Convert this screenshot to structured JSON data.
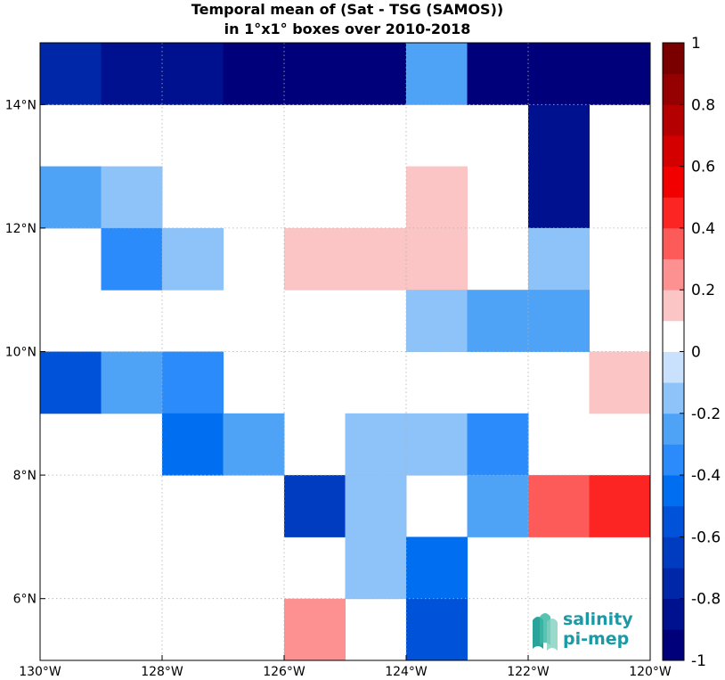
{
  "figure": {
    "title_line1": "Temporal mean of (Sat - TSG (SAMOS))",
    "title_line2": "in 1°x1° boxes over 2010-2018"
  },
  "map": {
    "lon_range": [
      -130,
      -120
    ],
    "lat_range": [
      5,
      15
    ],
    "x_ticks": [
      {
        "value": -130,
        "label": "130°W"
      },
      {
        "value": -128,
        "label": "128°W"
      },
      {
        "value": -126,
        "label": "126°W"
      },
      {
        "value": -124,
        "label": "124°W"
      },
      {
        "value": -122,
        "label": "122°W"
      },
      {
        "value": -120,
        "label": "120°W"
      }
    ],
    "y_ticks": [
      {
        "value": 6,
        "label": "6°N"
      },
      {
        "value": 8,
        "label": "8°N"
      },
      {
        "value": 10,
        "label": "10°N"
      },
      {
        "value": 12,
        "label": "12°N"
      },
      {
        "value": 14,
        "label": "14°N"
      }
    ],
    "grid": true,
    "cells": [
      {
        "lon": -130,
        "lat": 14,
        "value": -0.75
      },
      {
        "lon": -129,
        "lat": 14,
        "value": -0.8
      },
      {
        "lon": -128,
        "lat": 14,
        "value": -0.88
      },
      {
        "lon": -127,
        "lat": 14,
        "value": -0.98
      },
      {
        "lon": -126,
        "lat": 14,
        "value": -0.98
      },
      {
        "lon": -125,
        "lat": 14,
        "value": -0.98
      },
      {
        "lon": -124,
        "lat": 14,
        "value": -0.25
      },
      {
        "lon": -123,
        "lat": 14,
        "value": -0.98
      },
      {
        "lon": -122,
        "lat": 14,
        "value": -0.98
      },
      {
        "lon": -121,
        "lat": 14,
        "value": -0.98
      },
      {
        "lon": -122,
        "lat": 13,
        "value": -0.88
      },
      {
        "lon": -130,
        "lat": 12,
        "value": -0.3
      },
      {
        "lon": -129,
        "lat": 12,
        "value": -0.15
      },
      {
        "lon": -124,
        "lat": 12,
        "value": 0.15
      },
      {
        "lon": -122,
        "lat": 12,
        "value": -0.8
      },
      {
        "lon": -129,
        "lat": 11,
        "value": -0.35
      },
      {
        "lon": -128,
        "lat": 11,
        "value": -0.15
      },
      {
        "lon": -126,
        "lat": 11,
        "value": 0.15
      },
      {
        "lon": -125,
        "lat": 11,
        "value": 0.15
      },
      {
        "lon": -124,
        "lat": 11,
        "value": 0.15
      },
      {
        "lon": -122,
        "lat": 11,
        "value": -0.15
      },
      {
        "lon": -124,
        "lat": 10,
        "value": -0.15
      },
      {
        "lon": -123,
        "lat": 10,
        "value": -0.25
      },
      {
        "lon": -122,
        "lat": 10,
        "value": -0.25
      },
      {
        "lon": -130,
        "lat": 9,
        "value": -0.55
      },
      {
        "lon": -129,
        "lat": 9,
        "value": -0.25
      },
      {
        "lon": -128,
        "lat": 9,
        "value": -0.35
      },
      {
        "lon": -121,
        "lat": 9,
        "value": 0.15
      },
      {
        "lon": -128,
        "lat": 8,
        "value": -0.45
      },
      {
        "lon": -127,
        "lat": 8,
        "value": -0.25
      },
      {
        "lon": -125,
        "lat": 8,
        "value": -0.15
      },
      {
        "lon": -124,
        "lat": 8,
        "value": -0.15
      },
      {
        "lon": -123,
        "lat": 8,
        "value": -0.35
      },
      {
        "lon": -126,
        "lat": 7,
        "value": -0.65
      },
      {
        "lon": -125,
        "lat": 7,
        "value": -0.15
      },
      {
        "lon": -123,
        "lat": 7,
        "value": -0.25
      },
      {
        "lon": -122,
        "lat": 7,
        "value": 0.35
      },
      {
        "lon": -121,
        "lat": 7,
        "value": 0.45
      },
      {
        "lon": -125,
        "lat": 6,
        "value": -0.15
      },
      {
        "lon": -124,
        "lat": 6,
        "value": -0.45
      },
      {
        "lon": -126,
        "lat": 5,
        "value": 0.25
      },
      {
        "lon": -124,
        "lat": 5,
        "value": -0.55
      }
    ]
  },
  "colorbar": {
    "range": [
      -1,
      1
    ],
    "levels": 20,
    "labels": [
      {
        "value": 1,
        "text": "1"
      },
      {
        "value": 0.8,
        "text": "0.8"
      },
      {
        "value": 0.6,
        "text": "0.6"
      },
      {
        "value": 0.4,
        "text": "0.4"
      },
      {
        "value": 0.2,
        "text": "0.2"
      },
      {
        "value": 0,
        "text": "0"
      },
      {
        "value": -0.2,
        "text": "-0.2"
      },
      {
        "value": -0.4,
        "text": "-0.4"
      },
      {
        "value": -0.6,
        "text": "-0.6"
      },
      {
        "value": -0.8,
        "text": "-0.8"
      },
      {
        "value": -1,
        "text": "-1"
      }
    ],
    "colors": [
      "#00007a",
      "#001190",
      "#0027a8",
      "#003cc0",
      "#0052d8",
      "#006ef0",
      "#2b8bfa",
      "#4fa3f7",
      "#8ec3fa",
      "#c9e1fc",
      "#ffffff",
      "#fcc5c5",
      "#fd9090",
      "#fd5a5a",
      "#fd2424",
      "#f20000",
      "#d40000",
      "#b40000",
      "#950000",
      "#7a0000"
    ]
  },
  "logo": {
    "line1": "salinity",
    "line2": "pi-mep",
    "color": "#1b9aa6"
  }
}
